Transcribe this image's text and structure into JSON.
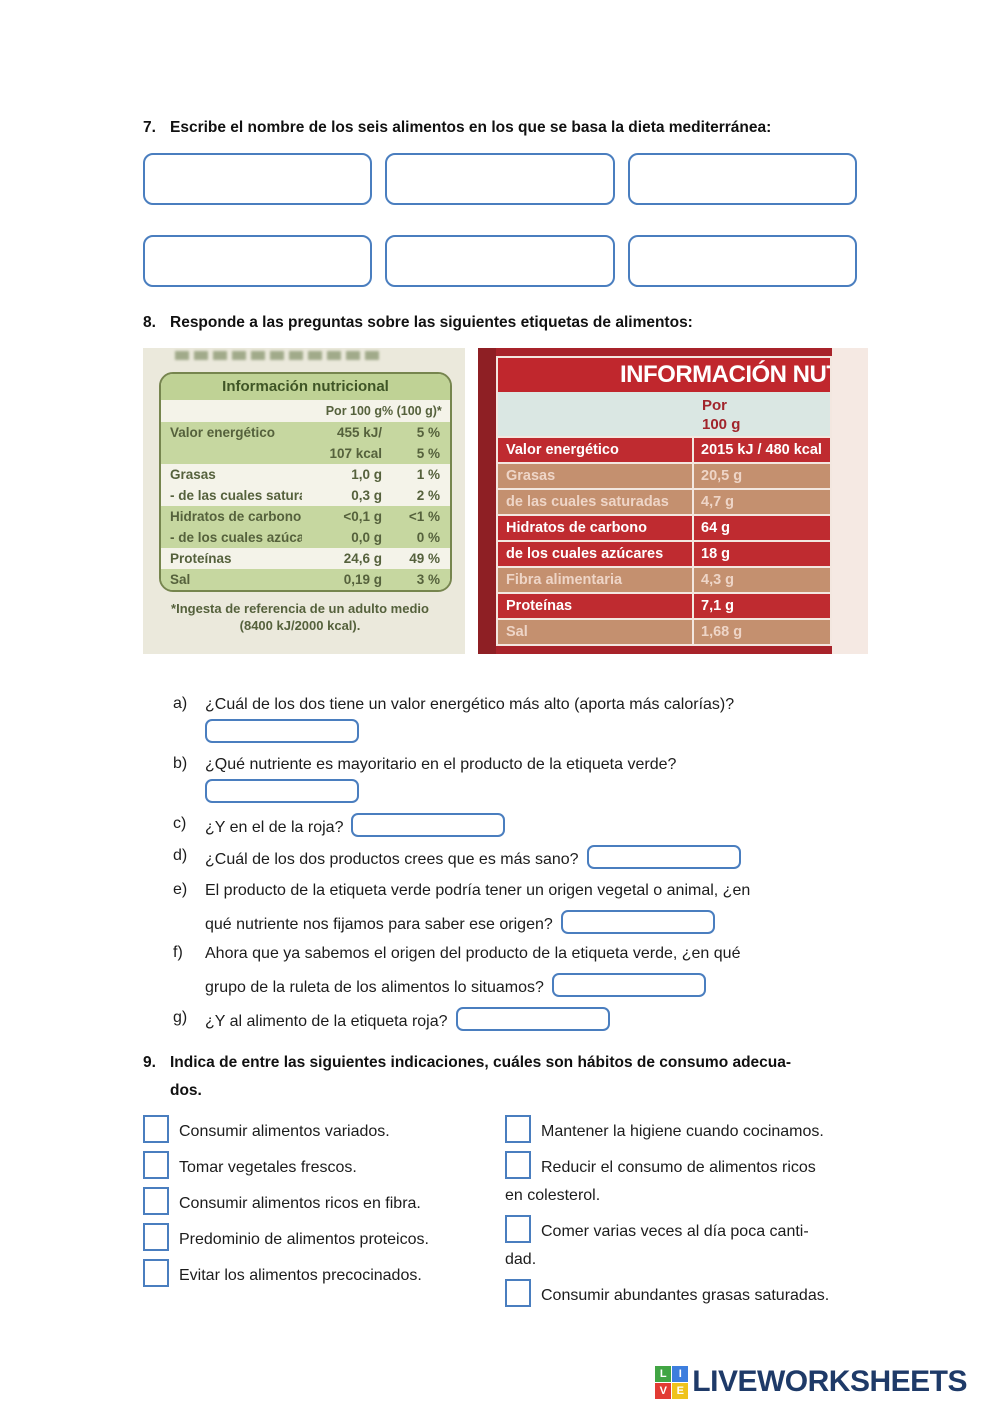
{
  "colors": {
    "accent_blue": "#4a7ebf",
    "green_label_band": "#c6d7a0",
    "green_label_text": "#55613c",
    "red_label_dark": "#bf2b30",
    "red_label_tan": "#c4906f",
    "logo_navy": "#1e3a68",
    "logo_green": "#41a544",
    "logo_blue": "#3d7ede",
    "logo_red": "#e23b33",
    "logo_yellow": "#efc31c"
  },
  "q7": {
    "number": "7.",
    "text": "Escribe el nombre de los seis alimentos en los que se basa la dieta mediterránea:",
    "answer_boxes": [
      "",
      "",
      "",
      "",
      "",
      ""
    ]
  },
  "q8": {
    "number": "8.",
    "text": "Responde a las preguntas sobre las siguientes etiquetas de alimentos:"
  },
  "green_label": {
    "title": "Información nutricional",
    "col1": "Por 100 g",
    "col2": "% (100 g)*",
    "rows": [
      {
        "name": "Valor energético",
        "value": "455 kJ/",
        "pct": "5 %"
      },
      {
        "name": "",
        "value": "107 kcal",
        "pct": "5 %"
      },
      {
        "name": "Grasas",
        "value": "1,0 g",
        "pct": "1 %"
      },
      {
        "name": "- de las cuales saturadas",
        "value": "0,3 g",
        "pct": "2 %"
      },
      {
        "name": "Hidratos de carbono",
        "value": "<0,1 g",
        "pct": "<1 %"
      },
      {
        "name": "- de los cuales azúcares",
        "value": "0,0 g",
        "pct": "0 %"
      },
      {
        "name": "Proteínas",
        "value": "24,6 g",
        "pct": "49 %"
      },
      {
        "name": "Sal",
        "value": "0,19 g",
        "pct": "3 %"
      }
    ],
    "footnote_line1": "*Ingesta de referencia de un adulto medio",
    "footnote_line2": "(8400 kJ/2000 kcal)."
  },
  "red_label": {
    "title": "INFORMACIÓN NUTRICIONAL",
    "col_line1": "Por",
    "col_line2": "100 g",
    "rows": [
      {
        "name": "Valor energético",
        "value": "2015 kJ / 480 kcal"
      },
      {
        "name": "Grasas",
        "value": "20,5 g"
      },
      {
        "name": "de las cuales saturadas",
        "value": "4,7 g"
      },
      {
        "name": "Hidratos de carbono",
        "value": "64 g"
      },
      {
        "name": "de los cuales azúcares",
        "value": "18 g"
      },
      {
        "name": "Fibra alimentaria",
        "value": "4,3 g"
      },
      {
        "name": "Proteínas",
        "value": "7,1 g"
      },
      {
        "name": "Sal",
        "value": "1,68 g"
      }
    ]
  },
  "q8_items": [
    {
      "letter": "a)",
      "text": "¿Cuál de los dos tiene un valor energético más alto (aporta más calorías)?"
    },
    {
      "letter": "b)",
      "text": "¿Qué nutriente es mayoritario en el producto de la etiqueta verde?"
    },
    {
      "letter": "c)",
      "text": "¿Y en el de la roja?"
    },
    {
      "letter": "d)",
      "text": "¿Cuál de los dos productos crees que es más sano?"
    },
    {
      "letter": "e)",
      "line1": "El producto de la etiqueta verde podría tener un origen vegetal o animal, ¿en",
      "line2": "qué nutriente nos fijamos para saber ese origen?"
    },
    {
      "letter": "f)",
      "line1": "Ahora que ya sabemos el origen del producto de la etiqueta verde, ¿en qué",
      "line2": "grupo de la ruleta de los alimentos lo situamos?"
    },
    {
      "letter": "g)",
      "text": "¿Y al alimento de la etiqueta roja?"
    }
  ],
  "q9": {
    "number": "9.",
    "line1": "Indica de entre las siguientes indicaciones, cuáles son hábitos de consumo adecua-",
    "line2": "dos.",
    "left_options": [
      "Consumir alimentos variados.",
      "Tomar vegetales frescos.",
      "Consumir alimentos ricos en fibra.",
      "Predominio de alimentos proteicos.",
      "Evitar los alimentos precocinados."
    ],
    "right_options": [
      {
        "line1": "Mantener la higiene cuando cocinamos.",
        "line2": ""
      },
      {
        "line1": "Reducir el consumo de alimentos ricos",
        "line2": "en colesterol."
      },
      {
        "line1": "Comer varias veces al día poca canti-",
        "line2": "dad."
      },
      {
        "line1": "Consumir abundantes grasas saturadas.",
        "line2": ""
      }
    ]
  },
  "footer": {
    "tiles": [
      "L",
      "I",
      "V",
      "E"
    ],
    "logo_text": "LIVEWORKSHEETS"
  }
}
